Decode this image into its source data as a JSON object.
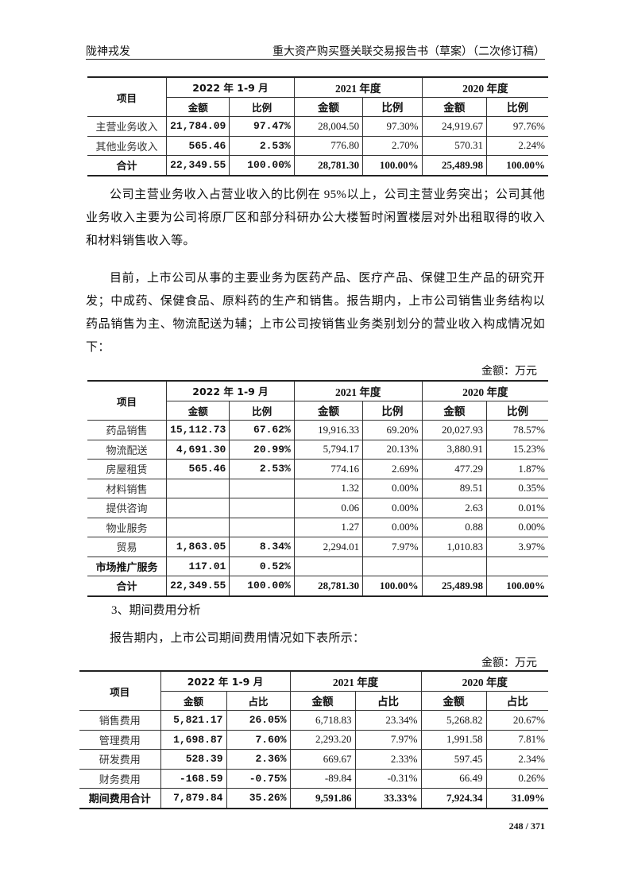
{
  "header": {
    "left": "陇神戎发",
    "right": "重大资产购买暨关联交易报告书（草案）（二次修订稿）"
  },
  "tables": [
    {
      "col_item": "项目",
      "periods": [
        "2022 年 1-9 月",
        "2021 年度",
        "2020 年度"
      ],
      "subs": [
        "金额",
        "比例",
        "金额",
        "比例",
        "金额",
        "比例"
      ],
      "rows": [
        {
          "label": "主营业务收入",
          "values": [
            "21,784.09",
            "97.47%",
            "28,004.50",
            "97.30%",
            "24,919.67",
            "97.76%"
          ]
        },
        {
          "label": "其他业务收入",
          "values": [
            "565.46",
            "2.53%",
            "776.80",
            "2.70%",
            "570.31",
            "2.24%"
          ]
        },
        {
          "label": "合计",
          "total": true,
          "values": [
            "22,349.55",
            "100.00%",
            "28,781.30",
            "100.00%",
            "25,489.98",
            "100.00%"
          ]
        }
      ]
    },
    {
      "col_item": "项目",
      "periods": [
        "2022 年 1-9 月",
        "2021 年度",
        "2020 年度"
      ],
      "subs": [
        "金额",
        "比例",
        "金额",
        "比例",
        "金额",
        "比例"
      ],
      "rows": [
        {
          "label": "药品销售",
          "values": [
            "15,112.73",
            "67.62%",
            "19,916.33",
            "69.20%",
            "20,027.93",
            "78.57%"
          ]
        },
        {
          "label": "物流配送",
          "values": [
            "4,691.30",
            "20.99%",
            "5,794.17",
            "20.13%",
            "3,880.91",
            "15.23%"
          ]
        },
        {
          "label": "房屋租赁",
          "values": [
            "565.46",
            "2.53%",
            "774.16",
            "2.69%",
            "477.29",
            "1.87%"
          ]
        },
        {
          "label": "材料销售",
          "values": [
            "",
            "",
            "1.32",
            "0.00%",
            "89.51",
            "0.35%"
          ]
        },
        {
          "label": "提供咨询",
          "values": [
            "",
            "",
            "0.06",
            "0.00%",
            "2.63",
            "0.01%"
          ]
        },
        {
          "label": "物业服务",
          "values": [
            "",
            "",
            "1.27",
            "0.00%",
            "0.88",
            "0.00%"
          ]
        },
        {
          "label": "贸易",
          "values": [
            "1,863.05",
            "8.34%",
            "2,294.01",
            "7.97%",
            "1,010.83",
            "3.97%"
          ]
        },
        {
          "label": "市场推广服务",
          "bold": true,
          "values": [
            "117.01",
            "0.52%",
            "",
            "",
            "",
            ""
          ]
        },
        {
          "label": "合计",
          "total": true,
          "values": [
            "22,349.55",
            "100.00%",
            "28,781.30",
            "100.00%",
            "25,489.98",
            "100.00%"
          ]
        }
      ]
    },
    {
      "col_item": "项目",
      "periods": [
        "2022 年 1-9 月",
        "2021 年度",
        "2020 年度"
      ],
      "subs": [
        "金额",
        "占比",
        "金额",
        "占比",
        "金额",
        "占比"
      ],
      "rows": [
        {
          "label": "销售费用",
          "values": [
            "5,821.17",
            "26.05%",
            "6,718.83",
            "23.34%",
            "5,268.82",
            "20.67%"
          ]
        },
        {
          "label": "管理费用",
          "values": [
            "1,698.87",
            "7.60%",
            "2,293.20",
            "7.97%",
            "1,991.58",
            "7.81%"
          ]
        },
        {
          "label": "研发费用",
          "values": [
            "528.39",
            "2.36%",
            "669.67",
            "2.33%",
            "597.45",
            "2.34%"
          ]
        },
        {
          "label": "财务费用",
          "values": [
            "-168.59",
            "-0.75%",
            "-89.84",
            "-0.31%",
            "66.49",
            "0.26%"
          ]
        },
        {
          "label": "期间费用合计",
          "total": true,
          "values": [
            "7,879.84",
            "35.26%",
            "9,591.86",
            "33.33%",
            "7,924.34",
            "31.09%"
          ]
        }
      ]
    }
  ],
  "paragraphs": [
    "公司主营业务收入占营业收入的比例在 95%以上，公司主营业务突出；公司其他业务收入主要为公司将原厂区和部分科研办公大楼暂时闲置楼层对外出租取得的收入和材料销售收入等。",
    "目前，上市公司从事的主要业务为医药产品、医疗产品、保健卫生产品的研究开发；中成药、保健食品、原料药的生产和销售。报告期内，上市公司销售业务结构以药品销售为主、物流配送为辅；上市公司按销售业务类别划分的营业收入构成情况如下：",
    "报告期内，上市公司期间费用情况如下表所示："
  ],
  "unit_label": "金额：万元",
  "section_title": "3、期间费用分析",
  "page_number": "248 / 371"
}
